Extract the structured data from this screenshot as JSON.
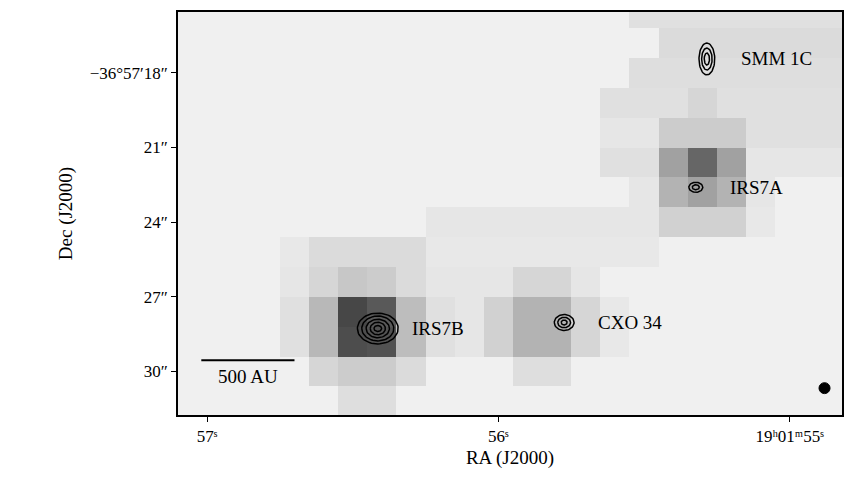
{
  "chart_data": {
    "type": "heatmap",
    "x_label": "RA (J2000)",
    "y_label": "Dec (J2000)",
    "xlim": [
      57.1,
      54.82
    ],
    "ylim": [
      31.76,
      15.55
    ],
    "xticks": [
      {
        "value": 57,
        "label": "57ˢ"
      },
      {
        "value": 56,
        "label": "56ˢ"
      },
      {
        "value": 55,
        "label": "19ʰ01ᵐ55ˢ"
      }
    ],
    "yticks": [
      {
        "value": 18,
        "label": "−36°57′18″"
      },
      {
        "value": 21,
        "label": "21″"
      },
      {
        "value": 24,
        "label": "24″"
      },
      {
        "value": 27,
        "label": "27″"
      },
      {
        "value": 30,
        "label": "30″"
      }
    ],
    "zlim": [
      0,
      10
    ],
    "x": [
      57.1,
      57.0,
      56.9,
      56.8,
      56.7,
      56.6,
      56.5,
      56.4,
      56.3,
      56.2,
      56.1,
      56.0,
      55.9,
      55.8,
      55.7,
      55.6,
      55.5,
      55.4,
      55.3,
      55.2,
      55.1,
      55.0,
      54.9,
      54.8
    ],
    "y": [
      15.6,
      16.8,
      18.0,
      19.2,
      20.4,
      21.6,
      22.8,
      24.0,
      25.2,
      26.4,
      27.6,
      28.8,
      30.0,
      31.2
    ],
    "z": [
      [
        0.6,
        0.6,
        0.6,
        0.6,
        0.6,
        0.6,
        0.6,
        0.6,
        0.6,
        0.6,
        0.6,
        0.6,
        0.6,
        0.6,
        0.6,
        0.6,
        1.2,
        1.2,
        1.2,
        1.2,
        1.2,
        1.2,
        1.2,
        1.2
      ],
      [
        0.6,
        0.6,
        0.6,
        0.6,
        0.6,
        0.6,
        0.6,
        0.6,
        0.6,
        0.6,
        0.6,
        0.6,
        0.6,
        0.6,
        0.6,
        0.6,
        0.6,
        1.4,
        1.4,
        1.4,
        1.4,
        1.4,
        1.4,
        1.4
      ],
      [
        0.6,
        0.6,
        0.6,
        0.6,
        0.6,
        0.6,
        0.6,
        0.6,
        0.6,
        0.6,
        0.6,
        0.6,
        0.6,
        0.6,
        0.6,
        0.6,
        1.3,
        1.3,
        1.3,
        1.3,
        1.3,
        1.3,
        1.3,
        1.3
      ],
      [
        0.6,
        0.6,
        0.6,
        0.6,
        0.6,
        0.6,
        0.6,
        0.6,
        0.6,
        0.6,
        0.6,
        0.6,
        0.6,
        0.6,
        0.6,
        1.2,
        1.2,
        1.2,
        1.6,
        1.2,
        1.2,
        1.2,
        1.2,
        1.2
      ],
      [
        0.6,
        0.6,
        0.6,
        0.6,
        0.6,
        0.6,
        0.6,
        0.6,
        0.6,
        0.6,
        0.6,
        0.6,
        0.6,
        0.6,
        0.6,
        1.0,
        1.0,
        2.0,
        2.0,
        2.0,
        1.2,
        1.2,
        1.2,
        1.2
      ],
      [
        0.6,
        0.6,
        0.6,
        0.6,
        0.6,
        0.6,
        0.6,
        0.6,
        0.6,
        0.6,
        0.6,
        0.6,
        0.6,
        0.6,
        0.6,
        1.2,
        1.2,
        3.7,
        6.0,
        3.7,
        1.0,
        1.0,
        1.0,
        1.0
      ],
      [
        0.6,
        0.6,
        0.6,
        0.6,
        0.6,
        0.6,
        0.6,
        0.6,
        0.6,
        0.6,
        0.6,
        0.6,
        0.6,
        0.6,
        0.6,
        0.6,
        1.0,
        3.0,
        3.7,
        3.0,
        1.0,
        0.6,
        0.6,
        0.6
      ],
      [
        0.6,
        0.6,
        0.6,
        0.6,
        0.6,
        0.6,
        0.6,
        0.6,
        0.6,
        1.0,
        1.0,
        1.0,
        1.0,
        1.0,
        1.0,
        1.0,
        1.0,
        1.8,
        1.8,
        1.8,
        0.9,
        0.6,
        0.6,
        0.6
      ],
      [
        0.6,
        0.6,
        0.6,
        0.6,
        0.9,
        1.4,
        1.4,
        1.4,
        1.4,
        0.9,
        0.9,
        0.9,
        0.9,
        0.9,
        0.9,
        0.9,
        0.9,
        0.6,
        0.6,
        0.6,
        0.6,
        0.6,
        0.6,
        0.6
      ],
      [
        0.6,
        0.6,
        0.6,
        0.6,
        1.0,
        1.6,
        2.2,
        2.0,
        1.4,
        1.0,
        1.0,
        1.0,
        1.6,
        1.6,
        1.0,
        0.6,
        0.6,
        0.6,
        0.6,
        0.6,
        0.6,
        0.6,
        0.6,
        0.6
      ],
      [
        0.6,
        0.6,
        0.6,
        0.6,
        1.2,
        2.8,
        7.2,
        6.5,
        2.6,
        1.2,
        1.0,
        1.8,
        3.0,
        3.0,
        1.6,
        0.9,
        0.6,
        0.6,
        0.6,
        0.6,
        0.6,
        0.6,
        0.6,
        0.6
      ],
      [
        0.6,
        0.6,
        0.6,
        0.6,
        1.2,
        2.8,
        7.0,
        6.8,
        2.6,
        1.2,
        1.0,
        1.8,
        3.0,
        3.0,
        1.6,
        0.9,
        0.6,
        0.6,
        0.6,
        0.6,
        0.6,
        0.6,
        0.6,
        0.6
      ],
      [
        0.6,
        0.6,
        0.6,
        0.6,
        0.6,
        1.6,
        2.0,
        2.0,
        1.4,
        0.6,
        0.6,
        0.6,
        1.3,
        1.3,
        0.6,
        0.6,
        0.6,
        0.6,
        0.6,
        0.6,
        0.6,
        0.6,
        0.6,
        0.6
      ],
      [
        0.6,
        0.6,
        0.6,
        0.6,
        0.6,
        0.6,
        1.3,
        1.3,
        0.6,
        0.6,
        0.6,
        0.6,
        0.6,
        0.6,
        0.6,
        0.6,
        0.6,
        0.6,
        0.6,
        0.6,
        0.6,
        0.6,
        0.6,
        0.6
      ]
    ],
    "sources": [
      {
        "name": "SMM 1C",
        "x": 55.284,
        "y": 17.44,
        "rx": [
          0.027,
          0.018,
          0.009
        ],
        "ry": [
          0.64,
          0.44,
          0.24
        ]
      },
      {
        "name": "IRS7A",
        "x": 55.322,
        "y": 22.6,
        "rx": [
          0.024,
          0.012
        ],
        "ry": [
          0.2,
          0.1
        ]
      },
      {
        "name": "CXO 34",
        "x": 55.774,
        "y": 28.04,
        "rx": [
          0.034,
          0.022,
          0.01
        ],
        "ry": [
          0.32,
          0.21,
          0.1
        ]
      },
      {
        "name": "IRS7B",
        "x": 56.414,
        "y": 28.28,
        "rx": [
          0.07,
          0.055,
          0.04,
          0.026,
          0.013
        ],
        "ry": [
          0.62,
          0.5,
          0.37,
          0.25,
          0.12
        ]
      }
    ],
    "scalebar": {
      "text": "500 AU",
      "x0": 57.02,
      "x1": 56.7,
      "y": 29.56
    },
    "beam": {
      "x": 54.88,
      "y": 30.68,
      "rx": 0.019,
      "ry": 0.22
    }
  }
}
